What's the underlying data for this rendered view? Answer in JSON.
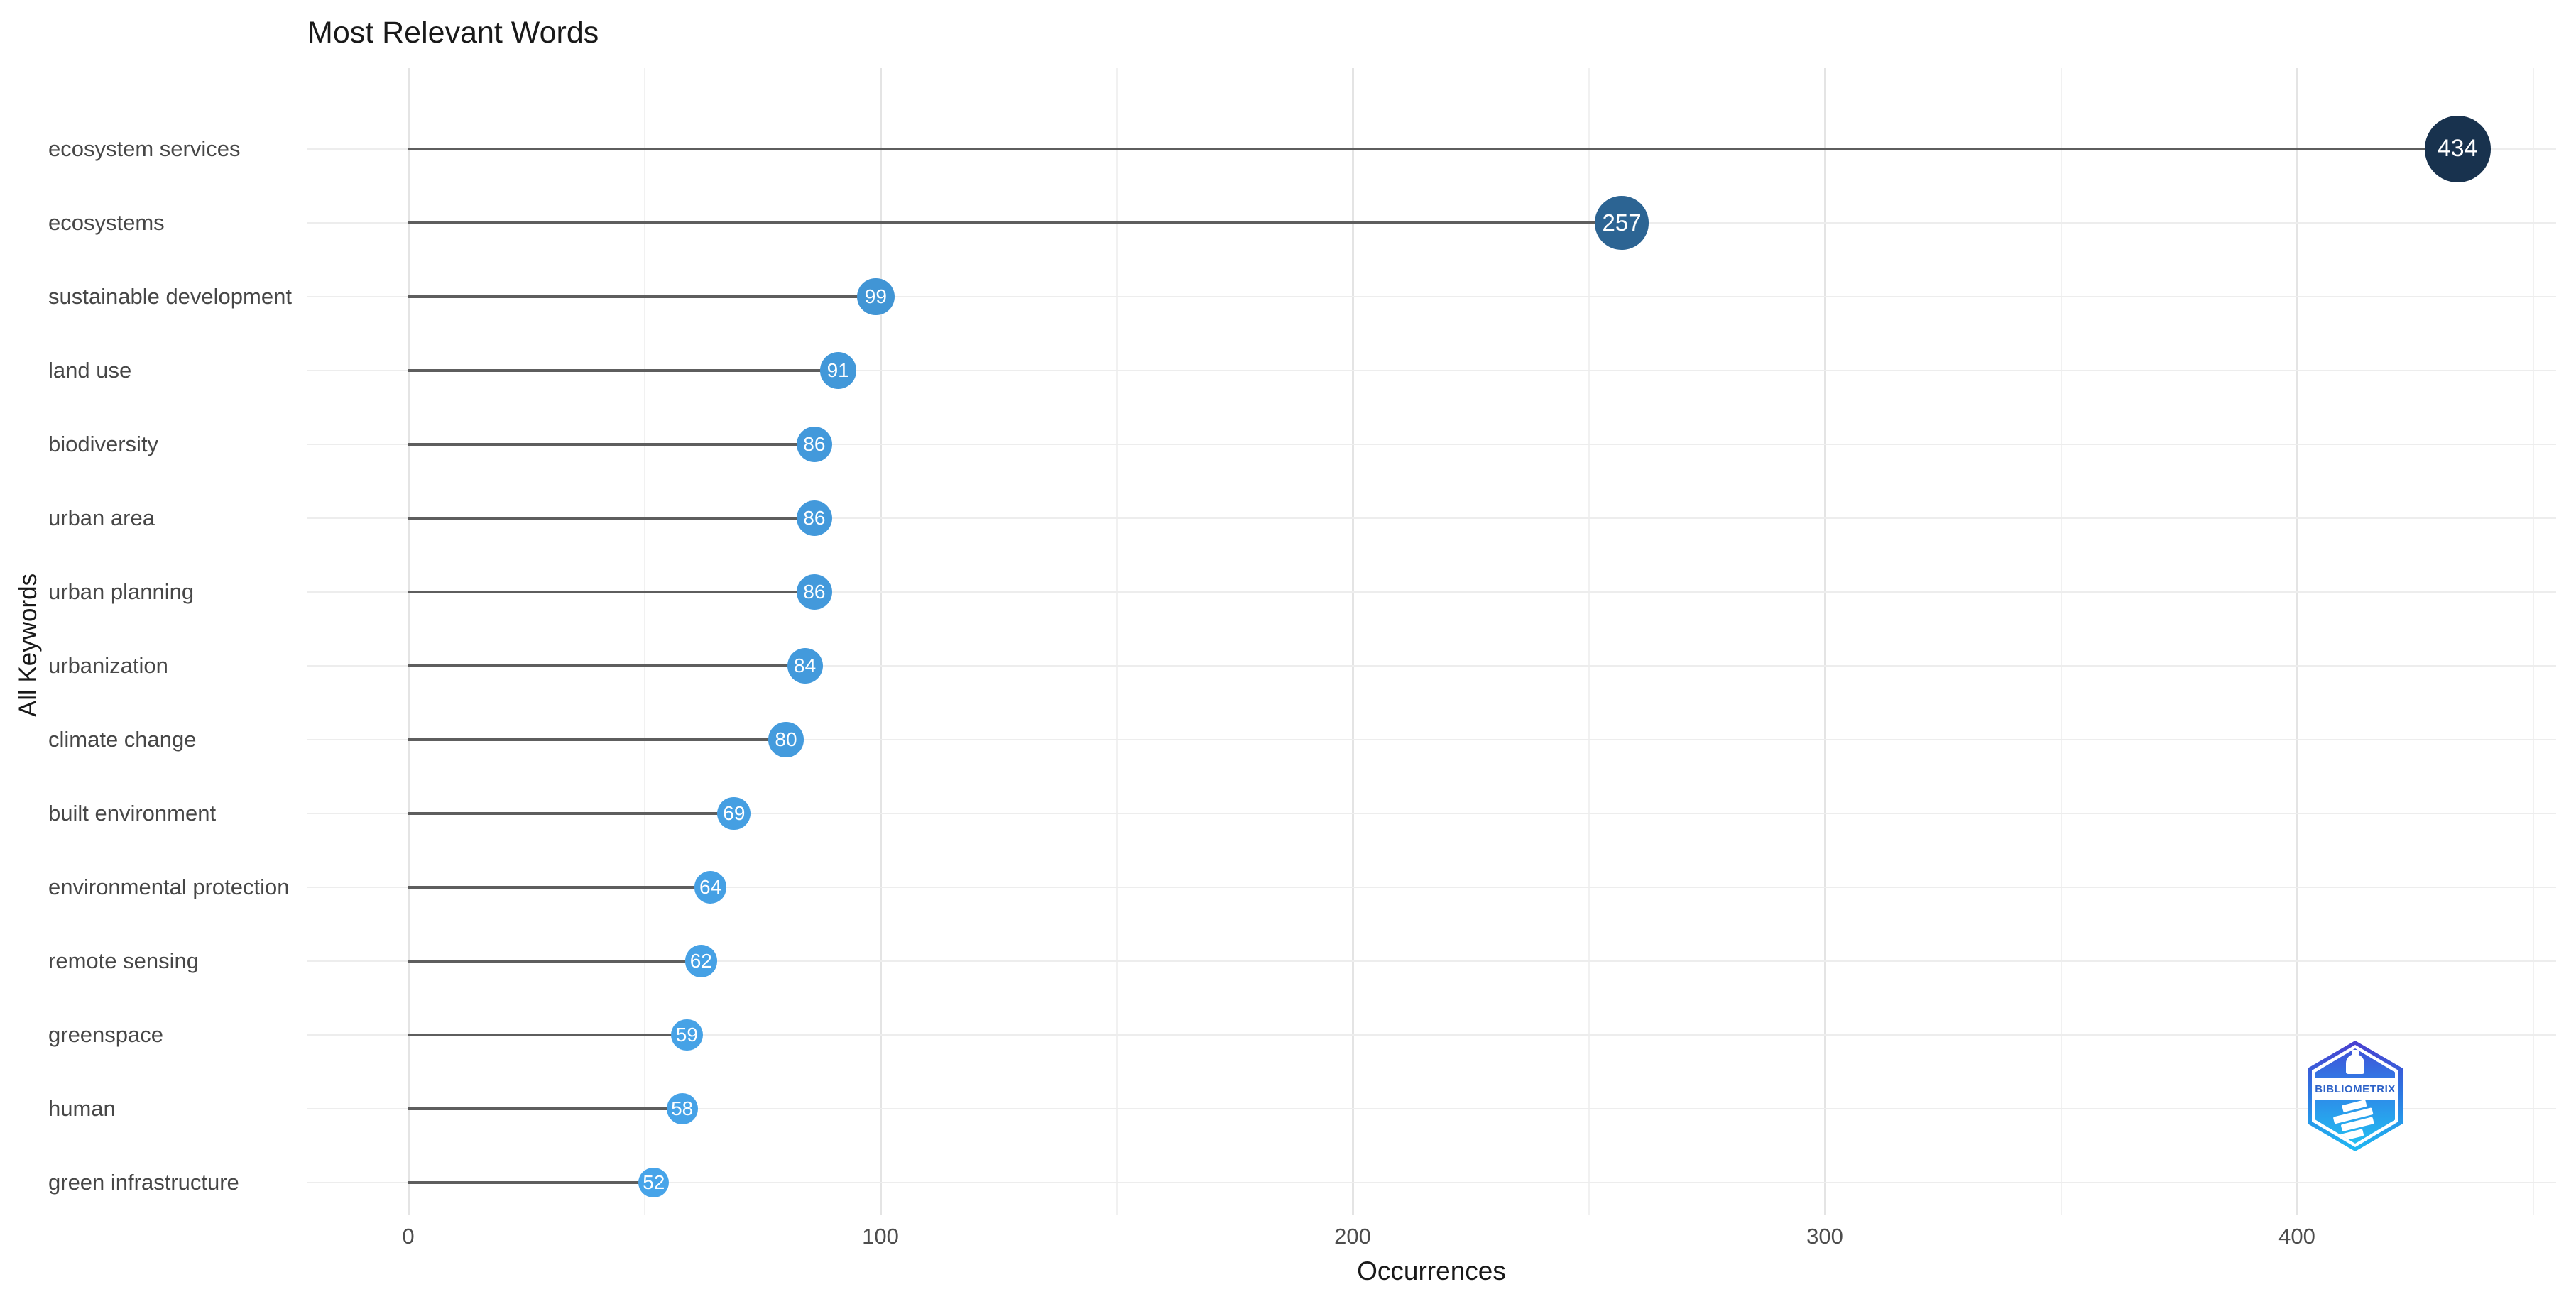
{
  "chart": {
    "title": "Most Relevant Words",
    "x_axis_title": "Occurrences",
    "y_axis_title": "All Keywords"
  },
  "chart_data": {
    "type": "bar",
    "variant": "horizontal-lollipop",
    "title": "Most Relevant Words",
    "xlabel": "Occurrences",
    "ylabel": "All Keywords",
    "categories": [
      "ecosystem services",
      "ecosystems",
      "sustainable development",
      "land use",
      "biodiversity",
      "urban area",
      "urban planning",
      "urbanization",
      "climate change",
      "built environment",
      "environmental protection",
      "remote sensing",
      "greenspace",
      "human",
      "green infrastructure"
    ],
    "values": [
      434,
      257,
      99,
      91,
      86,
      86,
      86,
      84,
      80,
      69,
      64,
      62,
      59,
      58,
      52
    ],
    "point_colors": [
      "#18324e",
      "#2c6493",
      "#4195d5",
      "#4298d9",
      "#4399db",
      "#4399db",
      "#4399db",
      "#439adc",
      "#449bdd",
      "#459fe2",
      "#45a0e4",
      "#46a1e5",
      "#46a2e6",
      "#46a2e7",
      "#47a4e9"
    ],
    "x_ticks": [
      0,
      100,
      200,
      300,
      400
    ],
    "x_minor_ticks": [
      50,
      150,
      250,
      350,
      450
    ],
    "xlim": [
      0,
      455
    ],
    "grid": true,
    "legend": false,
    "orientation": "horizontal"
  },
  "watermark": {
    "logo_text": "BIBLIOMETRIX"
  },
  "colors": {
    "stem": "#5e5e5e",
    "grid_major": "#e4e4e4",
    "grid_minor": "#f1f1f1",
    "grid_row": "#ededed",
    "axis_text": "#4d4d4d",
    "title_text": "#191919",
    "dot_label": "#ffffff"
  }
}
